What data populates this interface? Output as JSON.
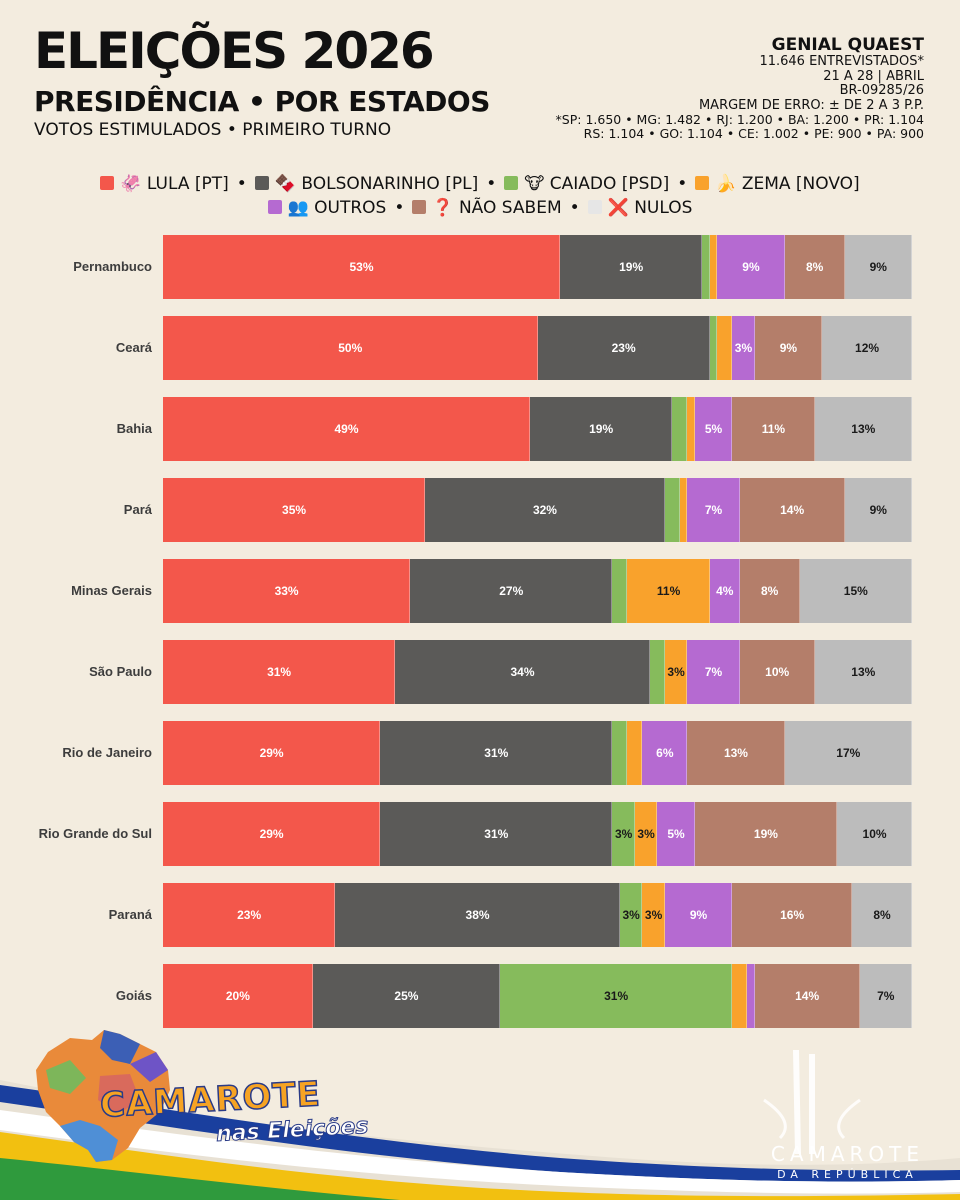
{
  "header": {
    "title": "ELEIÇÕES 2026",
    "subtitle": "PRESIDÊNCIA • POR ESTADOS",
    "subtitle2": "VOTOS ESTIMULADOS • PRIMEIRO TURNO"
  },
  "info": {
    "source": "GENIAL QUAEST",
    "interviewed": "11.646 ENTREVISTADOS*",
    "dates": "21 A 28 | ABRIL",
    "registry": "BR-09285/26",
    "margin": "MARGEM DE ERRO: ± DE 2 A 3 P.P.",
    "samples1": "*SP: 1.650 • MG: 1.482 • RJ: 1.200 • BA: 1.200 • PR: 1.104",
    "samples2": "RS: 1.104 • GO: 1.104 • CE: 1.002 • PE: 900 • PA: 900"
  },
  "colors": {
    "lula": "#f3574b",
    "bolsonarinho": "#5b5a58",
    "caiado": "#86bb5c",
    "zema": "#f9a22c",
    "outros": "#b56ad1",
    "naosabem": "#b47e6a",
    "nulos": "#bcbcbc"
  },
  "chart_data": {
    "type": "bar",
    "orientation": "horizontal",
    "stacked": true,
    "categories": [
      "Pernambuco",
      "Ceará",
      "Bahia",
      "Pará",
      "Minas Gerais",
      "São Paulo",
      "Rio de Janeiro",
      "Rio Grande do Sul",
      "Paraná",
      "Goiás"
    ],
    "series": [
      {
        "key": "lula",
        "name": "LULA [PT]",
        "values": [
          53,
          50,
          49,
          35,
          33,
          31,
          29,
          29,
          23,
          20
        ],
        "labels": [
          "53%",
          "50%",
          "49%",
          "35%",
          "33%",
          "31%",
          "29%",
          "29%",
          "23%",
          "20%"
        ]
      },
      {
        "key": "bolsonarinho",
        "name": "BOLSONARINHO [PL]",
        "values": [
          19,
          23,
          19,
          32,
          27,
          34,
          31,
          31,
          38,
          25
        ],
        "labels": [
          "19%",
          "23%",
          "19%",
          "32%",
          "27%",
          "34%",
          "31%",
          "31%",
          "38%",
          "25%"
        ]
      },
      {
        "key": "caiado",
        "name": "CAIADO [PSD]",
        "values": [
          1,
          1,
          2,
          2,
          2,
          2,
          2,
          3,
          3,
          31
        ],
        "labels": [
          "",
          "",
          "",
          "",
          "",
          "",
          "",
          "3%",
          "3%",
          "31%"
        ]
      },
      {
        "key": "zema",
        "name": "ZEMA [NOVO]",
        "values": [
          1,
          2,
          1,
          1,
          11,
          3,
          2,
          3,
          3,
          2
        ],
        "labels": [
          "",
          "",
          "",
          "",
          "11%",
          "3%",
          "",
          "3%",
          "3%",
          ""
        ]
      },
      {
        "key": "outros",
        "name": "OUTROS",
        "values": [
          9,
          3,
          5,
          7,
          4,
          7,
          6,
          5,
          9,
          1
        ],
        "labels": [
          "9%",
          "3%",
          "5%",
          "7%",
          "4%",
          "7%",
          "6%",
          "5%",
          "9%",
          ""
        ]
      },
      {
        "key": "naosabem",
        "name": "NÃO SABEM",
        "values": [
          8,
          9,
          11,
          14,
          8,
          10,
          13,
          19,
          16,
          14
        ],
        "labels": [
          "8%",
          "9%",
          "11%",
          "14%",
          "8%",
          "10%",
          "13%",
          "19%",
          "16%",
          "14%"
        ]
      },
      {
        "key": "nulos",
        "name": "NULOS",
        "values": [
          9,
          12,
          13,
          9,
          15,
          13,
          17,
          10,
          8,
          7
        ],
        "labels": [
          "9%",
          "12%",
          "13%",
          "9%",
          "15%",
          "13%",
          "17%",
          "10%",
          "8%",
          "7%"
        ]
      }
    ],
    "legend": [
      {
        "key": "lula",
        "emoji": "🦑",
        "label": "LULA [PT]"
      },
      {
        "key": "bolsonarinho",
        "emoji": "🍫",
        "label": "BOLSONARINHO [PL]"
      },
      {
        "key": "caiado",
        "emoji": "🐮",
        "label": "CAIADO [PSD]"
      },
      {
        "key": "zema",
        "emoji": "🍌",
        "label": "ZEMA [NOVO]"
      },
      {
        "key": "outros",
        "emoji": "👥",
        "label": "OUTROS"
      },
      {
        "key": "naosabem",
        "emoji": "❓",
        "label": "NÃO SABEM"
      },
      {
        "key": "nulos",
        "emoji": "❌",
        "label": "NULOS"
      }
    ],
    "legend_placement": "top-center",
    "xlim": [
      0,
      100
    ]
  },
  "footer": {
    "logo_title": "CAMAROTE",
    "logo_subtitle": "nas Eleições",
    "rep_title": "CAMAROTE",
    "rep_subtitle": "DA REPÚBLICA"
  }
}
